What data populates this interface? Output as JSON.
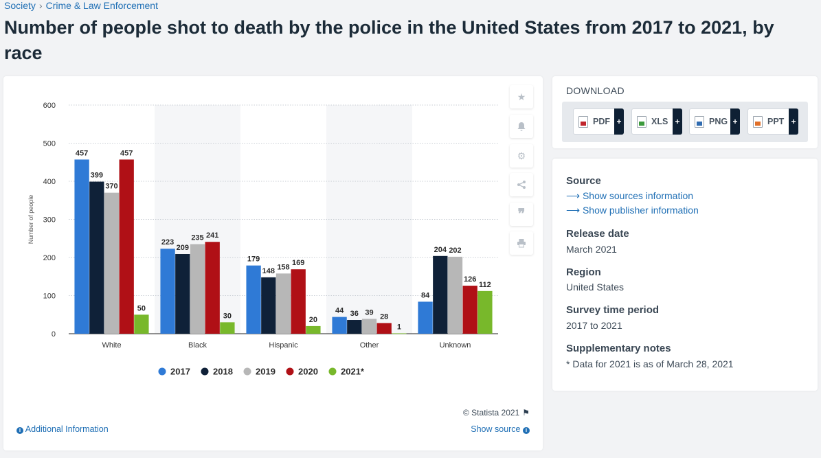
{
  "breadcrumb": {
    "items": [
      "Society",
      "Crime & Law Enforcement"
    ],
    "separator": "›"
  },
  "page_title": "Number of people shot to death by the police in the United States from 2017 to 2021, by race",
  "chart_data": {
    "type": "bar",
    "categories": [
      "White",
      "Black",
      "Hispanic",
      "Other",
      "Unknown"
    ],
    "series": [
      {
        "name": "2017",
        "color": "#2f7ad6",
        "values": [
          457,
          223,
          179,
          44,
          84
        ]
      },
      {
        "name": "2018",
        "color": "#0f2138",
        "values": [
          399,
          209,
          148,
          36,
          204
        ]
      },
      {
        "name": "2019",
        "color": "#b7b7b7",
        "values": [
          370,
          235,
          158,
          39,
          202
        ]
      },
      {
        "name": "2020",
        "color": "#b01016",
        "values": [
          457,
          241,
          169,
          28,
          126
        ]
      },
      {
        "name": "2021*",
        "color": "#78b82b",
        "values": [
          50,
          30,
          20,
          1,
          112
        ]
      }
    ],
    "ylabel": "Number of people",
    "ylim": [
      0,
      600
    ],
    "yticks": [
      0,
      100,
      200,
      300,
      400,
      500,
      600
    ],
    "grid": true,
    "data_labels": true,
    "legend_position": "bottom"
  },
  "toolbar": {
    "icons": [
      "star-icon",
      "bell-icon",
      "gear-icon",
      "share-icon",
      "quote-icon",
      "print-icon"
    ]
  },
  "footer": {
    "copyright": "© Statista 2021",
    "additional_info": "Additional Information",
    "show_source": "Show source"
  },
  "download": {
    "title": "DOWNLOAD",
    "buttons": [
      {
        "label": "PDF",
        "color": "#c0262d"
      },
      {
        "label": "XLS",
        "color": "#3c9a3c"
      },
      {
        "label": "PNG",
        "color": "#2f6bb0"
      },
      {
        "label": "PPT",
        "color": "#e0702a"
      }
    ],
    "plus": "+"
  },
  "info": {
    "source_heading": "Source",
    "show_sources": "Show sources information",
    "show_publisher": "Show publisher information",
    "release_heading": "Release date",
    "release_value": "March 2021",
    "region_heading": "Region",
    "region_value": "United States",
    "period_heading": "Survey time period",
    "period_value": "2017 to 2021",
    "notes_heading": "Supplementary notes",
    "notes_value": "* Data for 2021 is as of March 28, 2021"
  }
}
